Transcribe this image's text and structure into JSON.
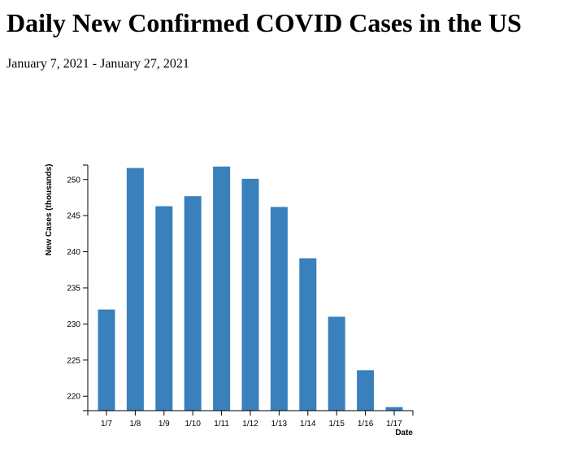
{
  "header": {
    "title": "Daily New Confirmed COVID Cases in the US",
    "subtitle": "January 7, 2021 - January 27, 2021"
  },
  "chart_data": {
    "type": "bar",
    "categories": [
      "1/7",
      "1/8",
      "1/9",
      "1/10",
      "1/11",
      "1/12",
      "1/13",
      "1/14",
      "1/15",
      "1/16",
      "1/17"
    ],
    "values": [
      232.0,
      251.6,
      246.3,
      247.7,
      251.8,
      250.1,
      246.2,
      239.1,
      231.0,
      223.6,
      218.5
    ],
    "xlabel": "Date",
    "ylabel": "New Cases (thousands)",
    "ylim": [
      218,
      252
    ],
    "yticks": [
      220,
      225,
      230,
      235,
      240,
      245,
      250
    ],
    "bar_color": "#3a80bc",
    "grid": false
  }
}
